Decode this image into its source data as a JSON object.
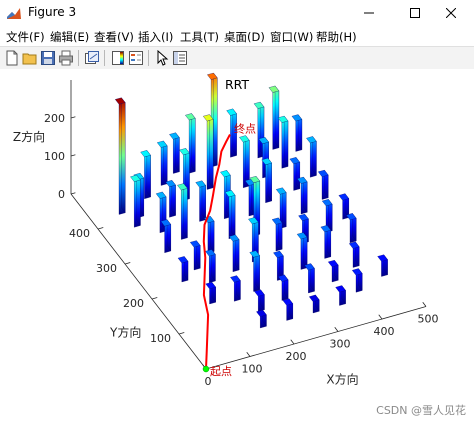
{
  "window": {
    "title": "Figure 3",
    "minimize_icon": "minimize-icon",
    "maximize_icon": "maximize-icon",
    "close_icon": "close-icon"
  },
  "menu": [
    {
      "label": "文件(F)"
    },
    {
      "label": "编辑(E)"
    },
    {
      "label": "查看(V)"
    },
    {
      "label": "插入(I)"
    },
    {
      "label": "工具(T)"
    },
    {
      "label": "桌面(D)"
    },
    {
      "label": "窗口(W)"
    },
    {
      "label": "帮助(H)"
    }
  ],
  "toolbar": [
    {
      "icon": "new-figure-icon"
    },
    {
      "icon": "open-file-icon"
    },
    {
      "icon": "save-icon"
    },
    {
      "icon": "print-icon"
    },
    {
      "icon": "link-plot-icon"
    },
    {
      "icon": "colorbar-icon"
    },
    {
      "icon": "legend-icon"
    },
    {
      "icon": "pointer-icon"
    },
    {
      "icon": "property-inspector-icon"
    }
  ],
  "watermark": "CSDN @雪人见花",
  "colors": {
    "path": "#ff0000",
    "start_marker": "#00ff00",
    "label_text": "#cc0000"
  },
  "chart_data": {
    "type": "3d-bar-path",
    "title": "RRT",
    "xlabel": "X方向",
    "ylabel": "Y方向",
    "zlabel": "Z方向",
    "xlim": [
      0,
      500
    ],
    "ylim": [
      0,
      500
    ],
    "zlim": [
      0,
      300
    ],
    "x_ticks": [
      0,
      100,
      200,
      300,
      400,
      500
    ],
    "y_ticks": [
      100,
      200,
      300,
      400
    ],
    "z_ticks": [
      0,
      100,
      200
    ],
    "colormap": "jet",
    "start_label": "起点",
    "goal_label": "终点",
    "start": [
      0,
      0,
      0
    ],
    "goal": [
      300,
      400,
      150
    ],
    "path": [
      [
        0,
        0,
        0
      ],
      [
        20,
        30,
        10
      ],
      [
        40,
        60,
        25
      ],
      [
        60,
        90,
        40
      ],
      [
        75,
        130,
        50
      ],
      [
        95,
        160,
        65
      ],
      [
        115,
        190,
        80
      ],
      [
        130,
        220,
        90
      ],
      [
        150,
        250,
        100
      ],
      [
        175,
        270,
        110
      ],
      [
        200,
        300,
        115
      ],
      [
        225,
        330,
        125
      ],
      [
        245,
        350,
        135
      ],
      [
        265,
        375,
        140
      ],
      [
        285,
        390,
        145
      ],
      [
        300,
        400,
        150
      ]
    ],
    "obstacles": [
      [
        60,
        420,
        290
      ],
      [
        70,
        380,
        120
      ],
      [
        90,
        400,
        100
      ],
      [
        130,
        440,
        110
      ],
      [
        180,
        460,
        100
      ],
      [
        220,
        480,
        90
      ],
      [
        250,
        470,
        140
      ],
      [
        300,
        470,
        230
      ],
      [
        350,
        480,
        110
      ],
      [
        400,
        460,
        130
      ],
      [
        440,
        470,
        150
      ],
      [
        480,
        450,
        80
      ],
      [
        430,
        420,
        120
      ],
      [
        380,
        410,
        90
      ],
      [
        330,
        400,
        120
      ],
      [
        260,
        420,
        180
      ],
      [
        200,
        410,
        120
      ],
      [
        150,
        380,
        80
      ],
      [
        110,
        350,
        90
      ],
      [
        90,
        300,
        70
      ],
      [
        140,
        320,
        130
      ],
      [
        200,
        350,
        90
      ],
      [
        250,
        340,
        110
      ],
      [
        300,
        330,
        80
      ],
      [
        350,
        350,
        100
      ],
      [
        420,
        360,
        70
      ],
      [
        470,
        380,
        90
      ],
      [
        460,
        320,
        60
      ],
      [
        400,
        300,
        80
      ],
      [
        340,
        280,
        90
      ],
      [
        280,
        280,
        140
      ],
      [
        230,
        290,
        110
      ],
      [
        170,
        270,
        80
      ],
      [
        120,
        240,
        60
      ],
      [
        80,
        220,
        50
      ],
      [
        130,
        200,
        70
      ],
      [
        190,
        210,
        80
      ],
      [
        240,
        220,
        100
      ],
      [
        300,
        230,
        70
      ],
      [
        360,
        230,
        60
      ],
      [
        420,
        240,
        70
      ],
      [
        470,
        260,
        50
      ],
      [
        450,
        200,
        60
      ],
      [
        380,
        180,
        70
      ],
      [
        320,
        170,
        80
      ],
      [
        260,
        160,
        60
      ],
      [
        200,
        150,
        90
      ],
      [
        150,
        140,
        50
      ],
      [
        100,
        150,
        40
      ],
      [
        180,
        100,
        40
      ],
      [
        240,
        110,
        50
      ],
      [
        300,
        110,
        60
      ],
      [
        360,
        120,
        40
      ],
      [
        420,
        140,
        50
      ],
      [
        280,
        60,
        30
      ],
      [
        220,
        60,
        40
      ],
      [
        340,
        60,
        35
      ],
      [
        160,
        60,
        30
      ],
      [
        390,
        80,
        45
      ],
      [
        460,
        100,
        40
      ]
    ]
  }
}
